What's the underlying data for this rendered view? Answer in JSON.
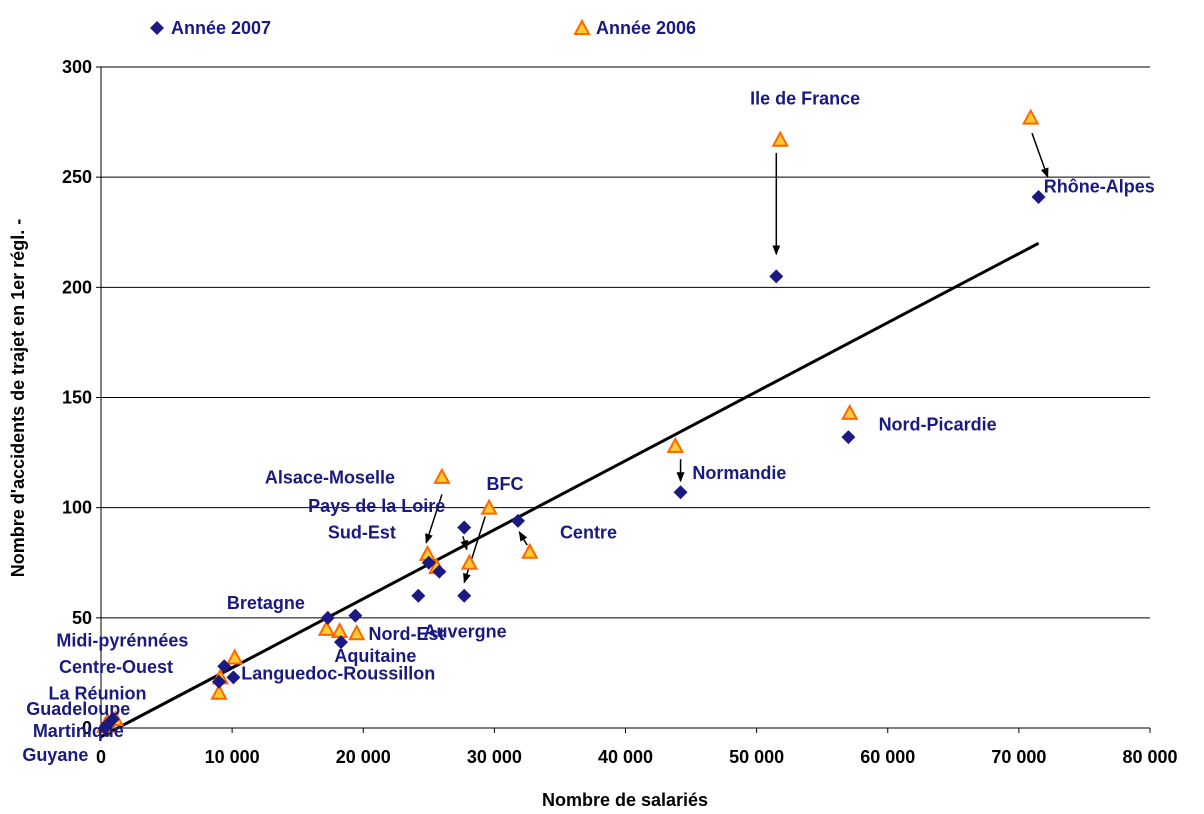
{
  "chart_data": {
    "type": "scatter",
    "title": "",
    "xlabel": "Nombre de salariés",
    "ylabel": "Nombre d'accidents de trajet en 1er régl. -",
    "xlim": [
      0,
      80000
    ],
    "ylim": [
      0,
      300
    ],
    "x_ticks": [
      0,
      10000,
      20000,
      30000,
      40000,
      50000,
      60000,
      70000,
      80000
    ],
    "x_tick_labels": [
      "0",
      "10 000",
      "20 000",
      "30 000",
      "40 000",
      "50 000",
      "60 000",
      "70 000",
      "80 000"
    ],
    "y_ticks": [
      0,
      50,
      100,
      150,
      200,
      250,
      300
    ],
    "y_tick_labels": [
      "0",
      "50",
      "100",
      "150",
      "200",
      "250",
      "300"
    ],
    "grid": "horizontal",
    "legend_placement": "top",
    "series": [
      {
        "name": "Année 2007",
        "marker": "diamond",
        "color": "#1a1a80",
        "points": [
          {
            "x": 71500,
            "y": 241
          },
          {
            "x": 51500,
            "y": 205
          },
          {
            "x": 57000,
            "y": 132
          },
          {
            "x": 44200,
            "y": 107
          },
          {
            "x": 31800,
            "y": 94
          },
          {
            "x": 27700,
            "y": 91
          },
          {
            "x": 25000,
            "y": 75
          },
          {
            "x": 25800,
            "y": 71
          },
          {
            "x": 24200,
            "y": 60
          },
          {
            "x": 27700,
            "y": 60
          },
          {
            "x": 17300,
            "y": 50
          },
          {
            "x": 19400,
            "y": 51
          },
          {
            "x": 18300,
            "y": 39
          },
          {
            "x": 9400,
            "y": 28
          },
          {
            "x": 10100,
            "y": 23
          },
          {
            "x": 9000,
            "y": 21
          },
          {
            "x": 400,
            "y": 1
          },
          {
            "x": 900,
            "y": 4
          },
          {
            "x": 300,
            "y": 0
          }
        ]
      },
      {
        "name": "Année 2006",
        "marker": "triangle",
        "color": "#ff6600",
        "fill": "#ffcc33",
        "points": [
          {
            "x": 70900,
            "y": 277
          },
          {
            "x": 51800,
            "y": 267
          },
          {
            "x": 57100,
            "y": 143
          },
          {
            "x": 43800,
            "y": 128
          },
          {
            "x": 26000,
            "y": 114
          },
          {
            "x": 29600,
            "y": 100
          },
          {
            "x": 32700,
            "y": 80
          },
          {
            "x": 24900,
            "y": 79
          },
          {
            "x": 25600,
            "y": 73
          },
          {
            "x": 28100,
            "y": 75
          },
          {
            "x": 17200,
            "y": 45
          },
          {
            "x": 18200,
            "y": 44
          },
          {
            "x": 19500,
            "y": 43
          },
          {
            "x": 10200,
            "y": 32
          },
          {
            "x": 9100,
            "y": 23
          },
          {
            "x": 9000,
            "y": 16
          },
          {
            "x": 500,
            "y": 3
          },
          {
            "x": 1100,
            "y": 4
          },
          {
            "x": 300,
            "y": 1
          }
        ]
      }
    ],
    "trendline": {
      "type": "linear",
      "x": [
        0,
        71500
      ],
      "y": [
        -4,
        220
      ]
    },
    "annotations": [
      {
        "text": "Ile de France",
        "x": 49500,
        "y": 283
      },
      {
        "text": "Rhône-Alpes",
        "x": 71900,
        "y": 243
      },
      {
        "text": "Nord-Picardie",
        "x": 59300,
        "y": 135
      },
      {
        "text": "Normandie",
        "x": 45100,
        "y": 113
      },
      {
        "text": "Centre",
        "x": 35000,
        "y": 86
      },
      {
        "text": "BFC",
        "x": 29400,
        "y": 108
      },
      {
        "text": "Alsace-Moselle",
        "x": 12500,
        "y": 111
      },
      {
        "text": "Pays de la Loire",
        "x": 15800,
        "y": 98
      },
      {
        "text": "Sud-Est",
        "x": 17300,
        "y": 86
      },
      {
        "text": "Auvergne",
        "x": 24600,
        "y": 41
      },
      {
        "text": "Bretagne",
        "x": 9600,
        "y": 54
      },
      {
        "text": "Nord-Est",
        "x": 20400,
        "y": 40
      },
      {
        "text": "Aquitaine",
        "x": 17800,
        "y": 30
      },
      {
        "text": "Midi-pyrénnées",
        "x": -3400,
        "y": 37
      },
      {
        "text": "Centre-Ouest",
        "x": -3200,
        "y": 25
      },
      {
        "text": "Languedoc-Roussillon",
        "x": 10700,
        "y": 22
      },
      {
        "text": "La Réunion",
        "x": -4000,
        "y": 13
      },
      {
        "text": "Guadeloupe",
        "x": -5700,
        "y": 6
      },
      {
        "text": "Martinique",
        "x": -5200,
        "y": -4
      },
      {
        "text": "Guyane",
        "x": -6000,
        "y": -15
      }
    ],
    "arrows": [
      {
        "from": [
          51500,
          261
        ],
        "to": [
          51500,
          215
        ]
      },
      {
        "from": [
          71000,
          270
        ],
        "to": [
          72200,
          250
        ]
      },
      {
        "from": [
          44200,
          122
        ],
        "to": [
          44200,
          112
        ]
      },
      {
        "from": [
          26000,
          106
        ],
        "to": [
          24800,
          84
        ]
      },
      {
        "from": [
          29300,
          96
        ],
        "to": [
          27700,
          66
        ]
      },
      {
        "from": [
          27600,
          87
        ],
        "to": [
          27900,
          81
        ]
      },
      {
        "from": [
          32500,
          83
        ],
        "to": [
          31900,
          89
        ]
      }
    ]
  }
}
